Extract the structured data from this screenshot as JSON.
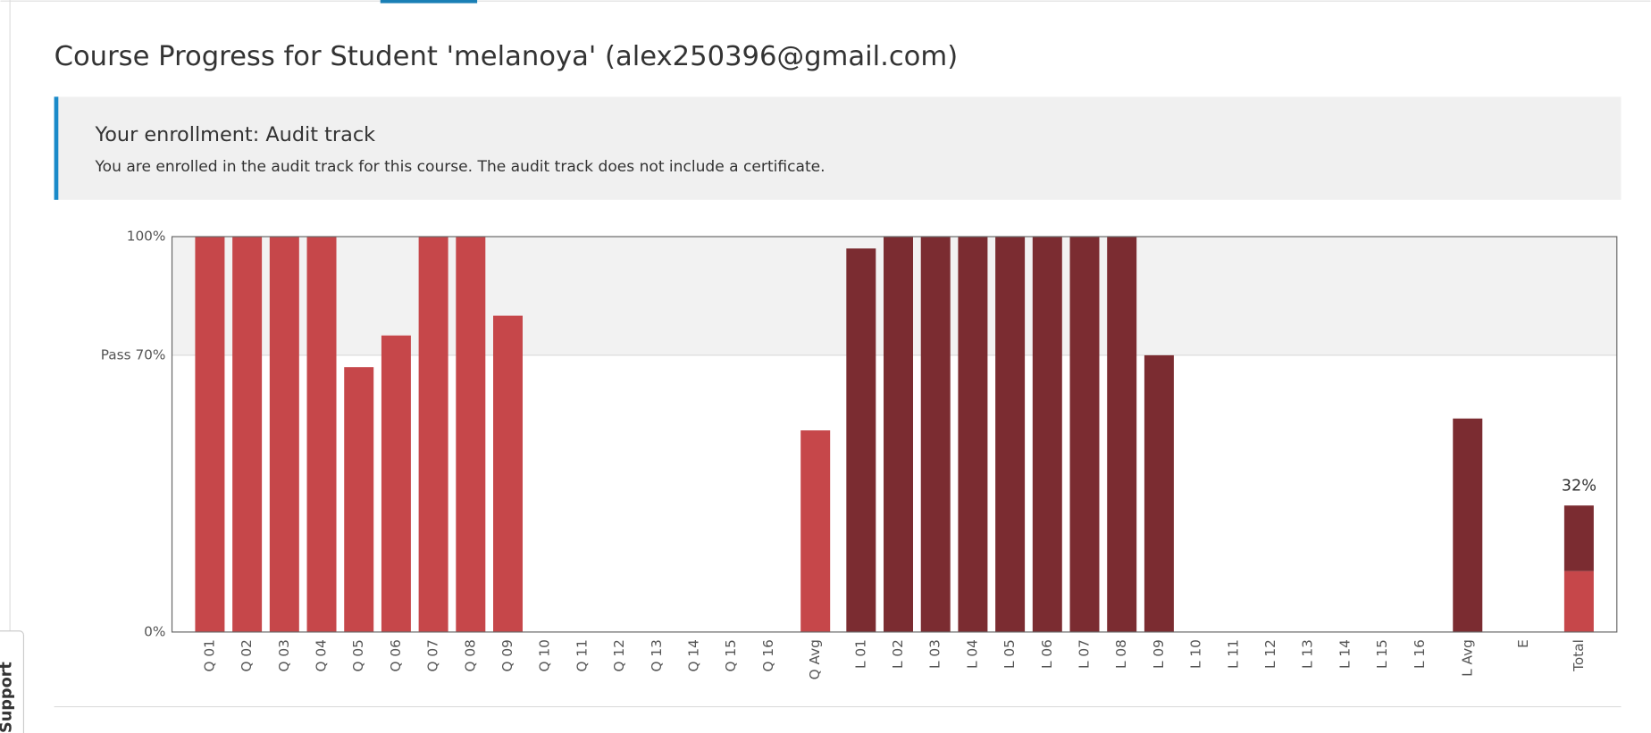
{
  "header": {
    "title": "Course Progress for Student 'melanoya' (alex250396@gmail.com)"
  },
  "notice": {
    "title": "Your enrollment: Audit track",
    "text": "You are enrolled in the audit track for this course. The audit track does not include a certificate."
  },
  "support": "Support",
  "chart_data": {
    "type": "bar",
    "stacked": true,
    "categories": [
      "Q 01",
      "Q 02",
      "Q 03",
      "Q 04",
      "Q 05",
      "Q 06",
      "Q 07",
      "Q 08",
      "Q 09",
      "Q 10",
      "Q 11",
      "Q 12",
      "Q 13",
      "Q 14",
      "Q 15",
      "Q 16",
      "Q Avg",
      "L 01",
      "L 02",
      "L 03",
      "L 04",
      "L 05",
      "L 06",
      "L 07",
      "L 08",
      "L 09",
      "L 10",
      "L 11",
      "L 12",
      "L 13",
      "L 14",
      "L 15",
      "L 16",
      "L Avg",
      "E",
      "Total"
    ],
    "series": [
      {
        "color": "#c6474a",
        "values": [
          100,
          100,
          100,
          100,
          67,
          75,
          100,
          100,
          80,
          0,
          0,
          0,
          0,
          0,
          0,
          0,
          51,
          null,
          null,
          null,
          null,
          null,
          null,
          null,
          null,
          null,
          null,
          null,
          null,
          null,
          null,
          null,
          null,
          null,
          null,
          15.4
        ]
      },
      {
        "color": "#7b2c31",
        "values": [
          null,
          null,
          null,
          null,
          null,
          null,
          null,
          null,
          null,
          null,
          null,
          null,
          null,
          null,
          null,
          null,
          null,
          97,
          100,
          100,
          100,
          100,
          100,
          100,
          100,
          70,
          0,
          0,
          0,
          0,
          0,
          0,
          0,
          54,
          null,
          16.6
        ]
      }
    ],
    "total_label": {
      "value": 32,
      "label": "32%"
    },
    "ylim": [
      0,
      100
    ],
    "yticks": [
      {
        "value": 0,
        "label": "0%"
      },
      {
        "value": 70,
        "label": "Pass 70%"
      },
      {
        "value": 100,
        "label": "100%"
      }
    ],
    "pass_band_color": "#f2f2f2"
  }
}
